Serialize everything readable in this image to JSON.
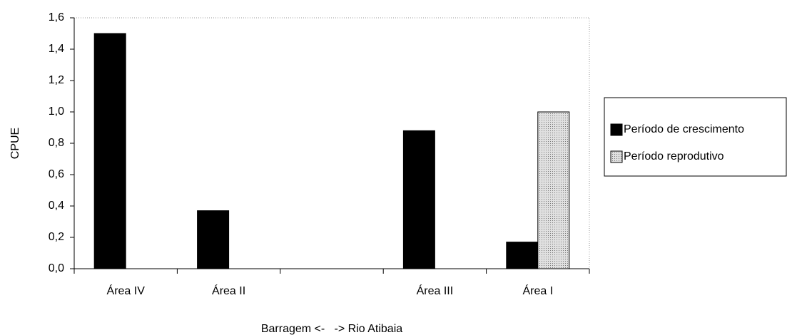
{
  "chart_data": {
    "type": "bar",
    "categories": [
      "Área IV",
      "Área II",
      null,
      "Área III",
      "Área I"
    ],
    "series": [
      {
        "name": "Período de crescimento",
        "color": "#000000",
        "values": [
          1.5,
          0.37,
          null,
          0.88,
          0.17
        ]
      },
      {
        "name": "Período reprodutivo",
        "color": "#c8c8c8",
        "values": [
          0,
          0,
          null,
          0,
          1.0
        ]
      }
    ],
    "x_label": "Barragem <-   -> Rio Atibaia",
    "y_label": "CPUE",
    "ylim": [
      0,
      1.6
    ],
    "yticks": [
      {
        "value": 0,
        "label": "0,0"
      },
      {
        "value": 0.2,
        "label": "0,2"
      },
      {
        "value": 0.4,
        "label": "0,4"
      },
      {
        "value": 0.6,
        "label": "0,6"
      },
      {
        "value": 0.8,
        "label": "0,8"
      },
      {
        "value": 1.0,
        "label": "1,0"
      },
      {
        "value": 1.2,
        "label": "1,2"
      },
      {
        "value": 1.4,
        "label": "1,4"
      },
      {
        "value": 1.6,
        "label": "1,6"
      }
    ],
    "legend": "right"
  }
}
